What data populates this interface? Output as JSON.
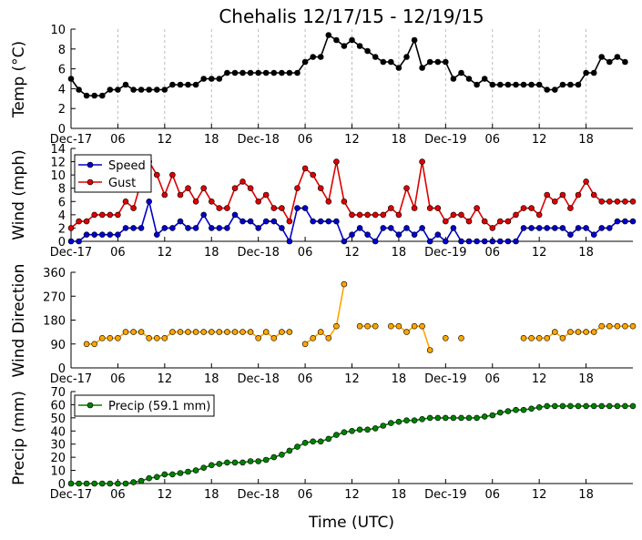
{
  "title": "Chehalis 12/17/15 - 12/19/15",
  "xlabel": "Time (UTC)",
  "x_tick_labels": [
    "Dec-17",
    "06",
    "12",
    "18",
    "Dec-18",
    "06",
    "12",
    "18",
    "Dec-19",
    "06",
    "12",
    "18"
  ],
  "chart_data": [
    {
      "type": "line",
      "ylabel": "Temp (°C)",
      "ylim": [
        0,
        10
      ],
      "yticks": [
        0,
        2,
        4,
        6,
        8,
        10
      ],
      "x": "hours since Dec-17 00:00 UTC, hourly from 0 to 71",
      "grid": "x dashed",
      "series": [
        {
          "name": "",
          "color": "#000000",
          "values": [
            5.0,
            3.9,
            3.3,
            3.3,
            3.3,
            3.9,
            3.9,
            4.4,
            3.9,
            3.9,
            3.9,
            3.9,
            3.9,
            4.4,
            4.4,
            4.4,
            4.4,
            5.0,
            5.0,
            5.0,
            5.6,
            5.6,
            5.6,
            5.6,
            5.6,
            5.6,
            5.6,
            5.6,
            5.6,
            5.6,
            6.7,
            7.2,
            7.2,
            9.4,
            8.9,
            8.3,
            8.9,
            8.3,
            7.8,
            7.2,
            6.7,
            6.7,
            6.1,
            7.2,
            8.9,
            6.1,
            6.7,
            6.7,
            6.7,
            5.0,
            5.6,
            5.0,
            4.4,
            5.0,
            4.4,
            4.4,
            4.4,
            4.4,
            4.4,
            4.4,
            4.4,
            3.9,
            3.9,
            4.4,
            4.4,
            4.4,
            5.6,
            5.6,
            7.2,
            6.7,
            7.2,
            6.7
          ]
        }
      ]
    },
    {
      "type": "line",
      "ylabel": "Wind (mph)",
      "ylim": [
        0,
        14
      ],
      "yticks": [
        0,
        2,
        4,
        6,
        8,
        10,
        12,
        14
      ],
      "legend": "upper-left",
      "series": [
        {
          "name": "Speed",
          "color": "#0000cc",
          "values": [
            0,
            0,
            1,
            1,
            1,
            1,
            1,
            2,
            2,
            2,
            6,
            1,
            2,
            2,
            3,
            2,
            2,
            4,
            2,
            2,
            2,
            4,
            3,
            3,
            2,
            3,
            3,
            2,
            0,
            5,
            5,
            3,
            3,
            3,
            3,
            0,
            1,
            2,
            1,
            0,
            2,
            2,
            1,
            2,
            1,
            2,
            0,
            1,
            0,
            2,
            0,
            0,
            0,
            0,
            0,
            0,
            0,
            0,
            2,
            2,
            2,
            2,
            2,
            2,
            1,
            2,
            2,
            1,
            2,
            2,
            3,
            3,
            3
          ]
        },
        {
          "name": "Gust",
          "color": "#dd0000",
          "values": [
            2,
            3,
            3,
            4,
            4,
            4,
            4,
            6,
            5,
            9,
            12,
            10,
            7,
            10,
            7,
            8,
            6,
            8,
            6,
            5,
            5,
            8,
            9,
            8,
            6,
            7,
            5,
            5,
            3,
            8,
            11,
            10,
            8,
            6,
            12,
            6,
            4,
            4,
            4,
            4,
            4,
            5,
            4,
            8,
            5,
            12,
            5,
            5,
            3,
            4,
            4,
            3,
            5,
            3,
            2,
            3,
            3,
            4,
            5,
            5,
            4,
            7,
            6,
            7,
            5,
            7,
            9,
            7,
            6,
            6,
            6,
            6,
            6
          ]
        }
      ]
    },
    {
      "type": "scatter",
      "ylabel": "Wind Direction",
      "ylim": [
        0,
        360
      ],
      "yticks": [
        0,
        90,
        180,
        270,
        360
      ],
      "series": [
        {
          "name": "",
          "color": "#ffa500",
          "values": [
            null,
            null,
            90,
            90,
            112,
            112,
            112,
            135,
            135,
            135,
            112,
            112,
            112,
            135,
            135,
            135,
            135,
            135,
            135,
            135,
            135,
            135,
            135,
            135,
            112,
            135,
            112,
            135,
            135,
            null,
            90,
            112,
            135,
            112,
            157,
            315,
            null,
            157,
            157,
            157,
            null,
            157,
            157,
            135,
            157,
            157,
            67,
            null,
            112,
            null,
            112,
            null,
            null,
            null,
            null,
            null,
            null,
            null,
            112,
            112,
            112,
            112,
            135,
            112,
            135,
            135,
            135,
            135,
            157,
            157,
            157,
            157,
            157
          ]
        }
      ]
    },
    {
      "type": "line",
      "ylabel": "Precip (mm)",
      "ylim": [
        0,
        70
      ],
      "yticks": [
        0,
        10,
        20,
        30,
        40,
        50,
        60,
        70
      ],
      "legend": "upper-left",
      "series": [
        {
          "name": "Precip (59.1 mm)",
          "color": "#008000",
          "values": [
            0,
            0,
            0,
            0,
            0,
            0,
            0,
            0,
            1,
            2,
            4,
            5,
            7,
            7,
            8,
            9,
            10,
            12,
            14,
            15,
            16,
            16,
            16,
            17,
            17,
            18,
            20,
            22,
            25,
            28,
            31,
            32,
            32,
            34,
            37,
            39,
            40,
            41,
            41,
            42,
            44,
            46,
            47,
            48,
            48,
            49,
            50,
            50,
            50,
            50,
            50,
            50,
            50,
            51,
            52,
            54,
            55,
            56,
            56,
            57,
            58,
            59,
            59,
            59,
            59,
            59,
            59,
            59,
            59,
            59,
            59,
            59,
            59
          ]
        }
      ]
    }
  ]
}
